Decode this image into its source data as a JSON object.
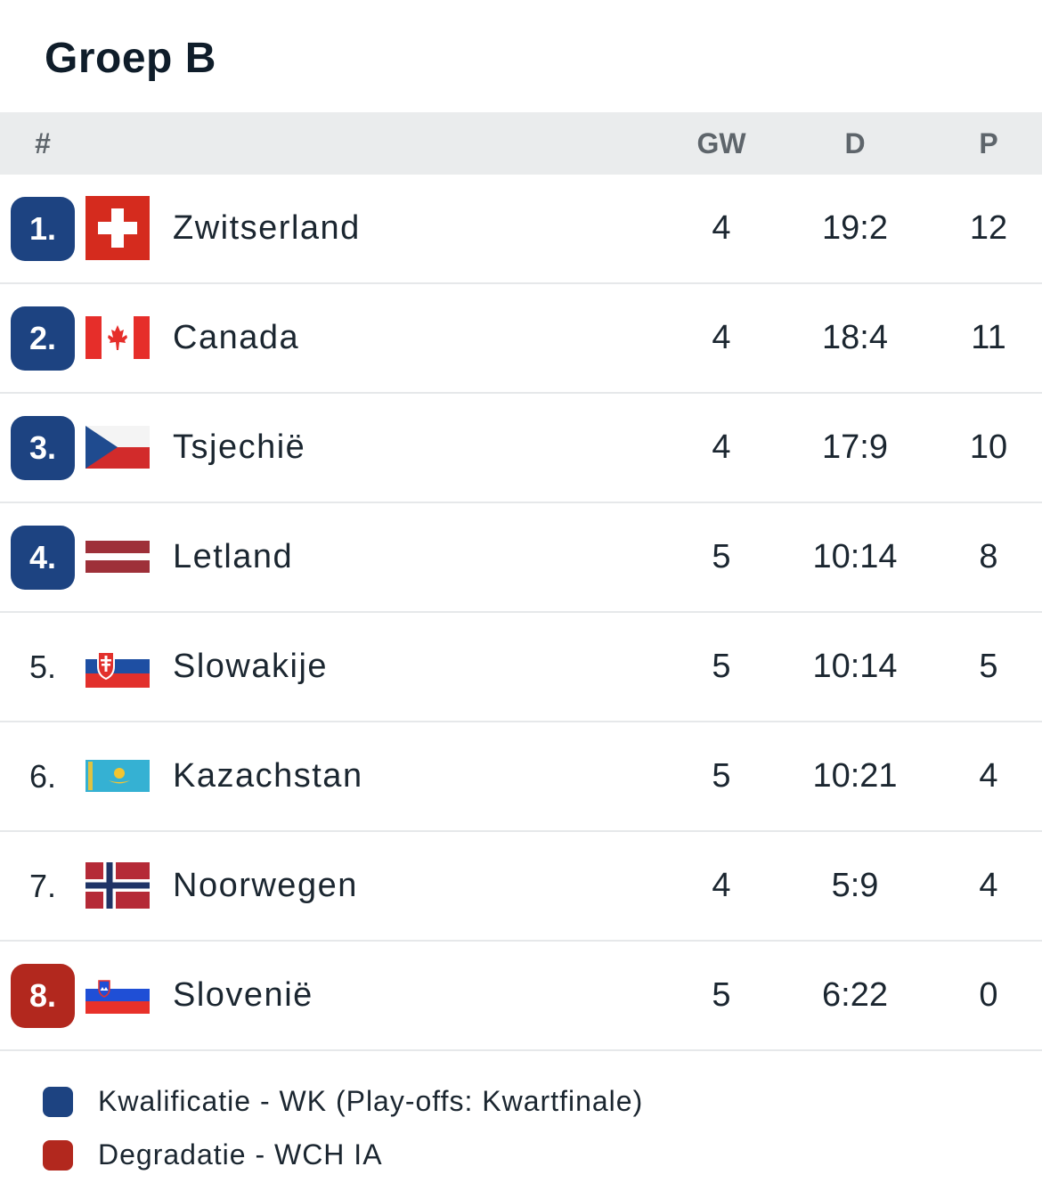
{
  "title": "Groep B",
  "header": {
    "rank": "#",
    "played": "GW",
    "goals": "D",
    "points": "P"
  },
  "colors": {
    "qualification": "#1d4381",
    "relegation": "#b2281e"
  },
  "rows": [
    {
      "rank": "1.",
      "zone": "q",
      "flag": "switzerland-flag-icon",
      "team": "Zwitserland",
      "played": "4",
      "goals": "19:2",
      "points": "12"
    },
    {
      "rank": "2.",
      "zone": "q",
      "flag": "canada-flag-icon",
      "team": "Canada",
      "played": "4",
      "goals": "18:4",
      "points": "11"
    },
    {
      "rank": "3.",
      "zone": "q",
      "flag": "czechia-flag-icon",
      "team": "Tsjechië",
      "played": "4",
      "goals": "17:9",
      "points": "10"
    },
    {
      "rank": "4.",
      "zone": "q",
      "flag": "latvia-flag-icon",
      "team": "Letland",
      "played": "5",
      "goals": "10:14",
      "points": "8"
    },
    {
      "rank": "5.",
      "zone": "n",
      "flag": "slovakia-flag-icon",
      "team": "Slowakije",
      "played": "5",
      "goals": "10:14",
      "points": "5"
    },
    {
      "rank": "6.",
      "zone": "n",
      "flag": "kazakhstan-flag-icon",
      "team": "Kazachstan",
      "played": "5",
      "goals": "10:21",
      "points": "4"
    },
    {
      "rank": "7.",
      "zone": "n",
      "flag": "norway-flag-icon",
      "team": "Noorwegen",
      "played": "4",
      "goals": "5:9",
      "points": "4"
    },
    {
      "rank": "8.",
      "zone": "r",
      "flag": "slovenia-flag-icon",
      "team": "Slovenië",
      "played": "5",
      "goals": "6:22",
      "points": "0"
    }
  ],
  "legend": [
    {
      "zone": "q",
      "label": "Kwalificatie - WK (Play-offs: Kwartfinale)"
    },
    {
      "zone": "r",
      "label": "Degradatie - WCH IA"
    }
  ]
}
